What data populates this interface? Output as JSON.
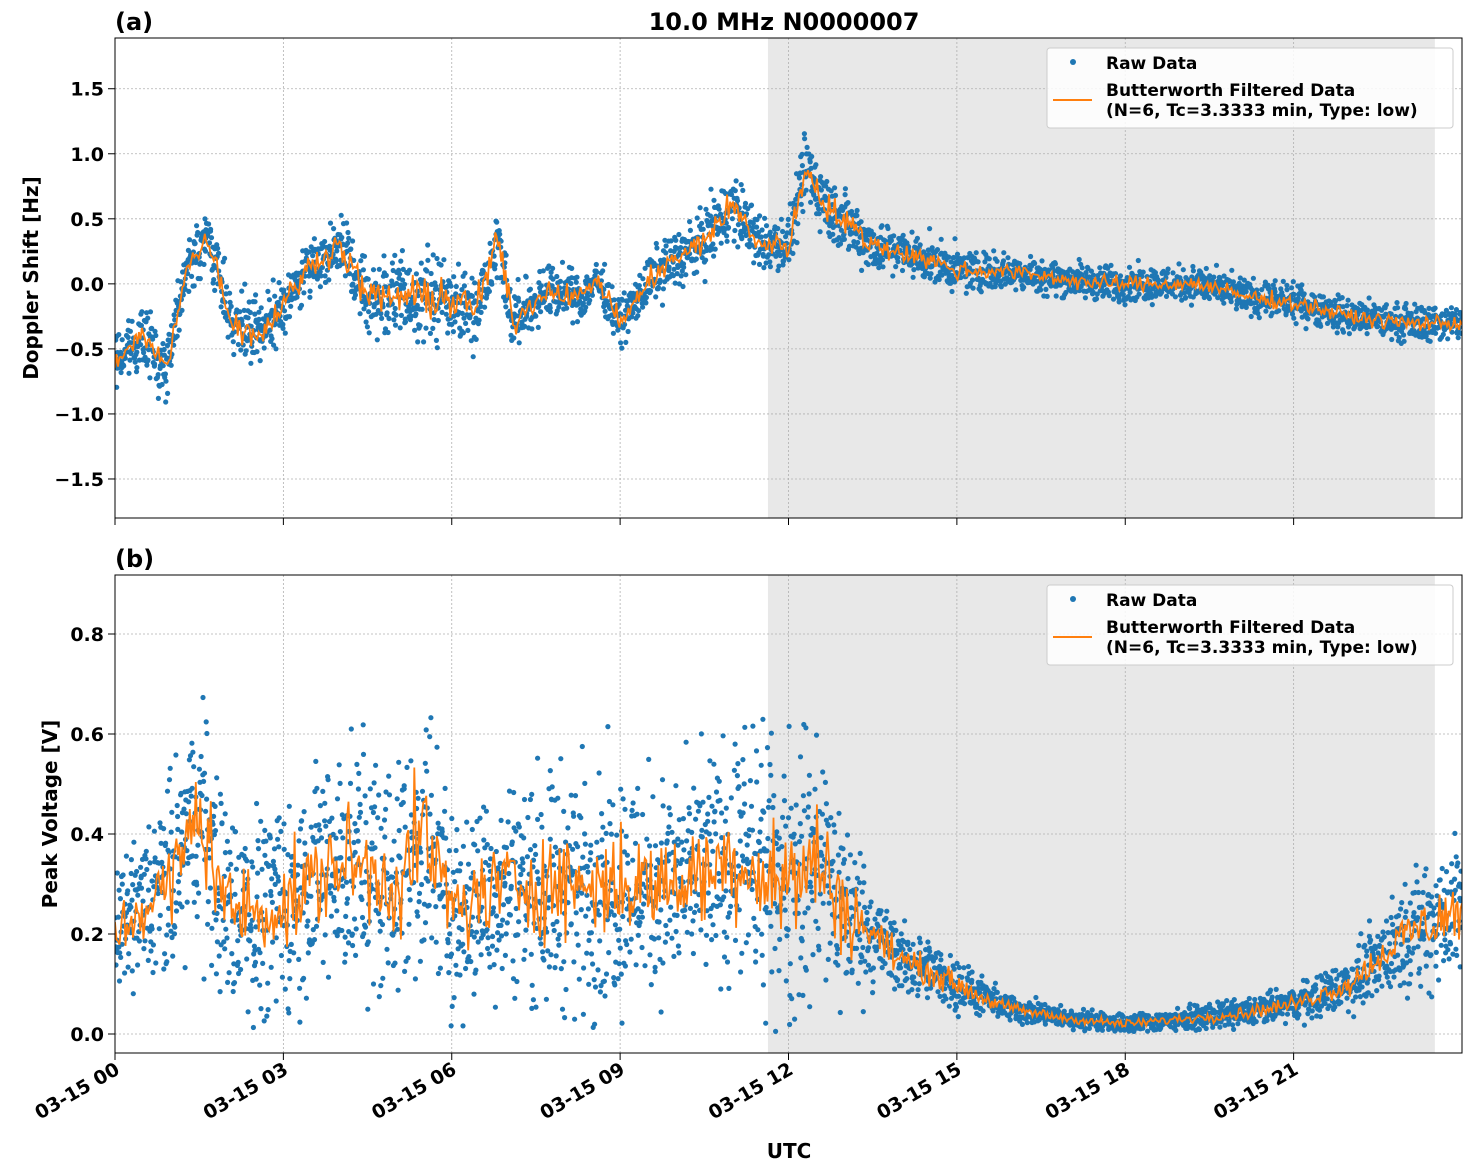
{
  "chart_data": [
    {
      "type": "scatter+line",
      "panel_label": "(a)",
      "title": "10.0 MHz N0000007",
      "ylabel": "Doppler Shift [Hz]",
      "xlabel": "",
      "xlim": [
        "03-15 00:00",
        "03-16 00:00"
      ],
      "ylim": [
        -1.8,
        1.89
      ],
      "xticks": [
        "03-15 00",
        "03-15 03",
        "03-15 06",
        "03-15 09",
        "03-15 12",
        "03-15 15",
        "03-15 18",
        "03-15 21"
      ],
      "yticks": [
        "−1.5",
        "−1.0",
        "−0.5",
        "0.0",
        "0.5",
        "1.0",
        "1.5"
      ],
      "ytick_values": [
        -1.5,
        -1.0,
        -0.5,
        0.0,
        0.5,
        1.0,
        1.5
      ],
      "grid": true,
      "legend_placement": "top-right",
      "shaded_span": [
        "03-15 11:38",
        "03-15 23:31"
      ],
      "legend": [
        "Raw Data",
        "Butterworth Filtered Data",
        "(N=6, Tc=3.3333 min, Type: low)"
      ],
      "series": [
        {
          "name": "Butterworth Filtered Data (N=6, Tc=3.3333 min, Type: low)",
          "color": "#ff7f0e",
          "x": [
            "03-15 00:00",
            "03-15 00:30",
            "03-15 00:55",
            "03-15 01:15",
            "03-15 01:40",
            "03-15 02:05",
            "03-15 02:35",
            "03-15 03:00",
            "03-15 03:30",
            "03-15 04:00",
            "03-15 04:30",
            "03-15 05:05",
            "03-15 05:50",
            "03-15 06:25",
            "03-15 06:50",
            "03-15 07:05",
            "03-15 07:40",
            "03-15 08:20",
            "03-15 08:35",
            "03-15 09:00",
            "03-15 09:40",
            "03-15 10:25",
            "03-15 11:00",
            "03-15 11:30",
            "03-15 12:00",
            "03-15 12:20",
            "03-15 12:40",
            "03-15 13:30",
            "03-15 14:25",
            "03-15 15:00",
            "03-15 15:50",
            "03-15 17:35",
            "03-15 19:20",
            "03-15 20:10",
            "03-15 21:05",
            "03-15 22:00",
            "03-15 22:55",
            "03-16 00:00"
          ],
          "y": [
            -0.6,
            -0.4,
            -0.65,
            0.1,
            0.35,
            -0.3,
            -0.4,
            -0.15,
            0.15,
            0.3,
            -0.1,
            -0.1,
            -0.1,
            -0.2,
            0.35,
            -0.3,
            -0.05,
            -0.1,
            0.05,
            -0.3,
            0.1,
            0.3,
            0.6,
            0.3,
            0.3,
            0.9,
            0.6,
            0.3,
            0.2,
            0.1,
            0.1,
            0.0,
            0.0,
            -0.1,
            -0.15,
            -0.25,
            -0.3,
            -0.3
          ]
        },
        {
          "name": "Raw Data",
          "color": "#1f77b4",
          "spread_hz": [
            0.3,
            0.35,
            0.35,
            0.3,
            0.3,
            0.35,
            0.4,
            0.3,
            0.3,
            0.35,
            0.4,
            0.5,
            0.5,
            0.45,
            0.35,
            0.35,
            0.3,
            0.25,
            0.25,
            0.25,
            0.3,
            0.35,
            0.4,
            0.3,
            0.3,
            0.45,
            0.4,
            0.3,
            0.25,
            0.25,
            0.2,
            0.2,
            0.2,
            0.2,
            0.2,
            0.2,
            0.2,
            0.2
          ]
        }
      ]
    },
    {
      "type": "scatter+line",
      "panel_label": "(b)",
      "ylabel": "Peak Voltage [V]",
      "xlabel": "UTC",
      "xlim": [
        "03-15 00:00",
        "03-16 00:00"
      ],
      "ylim": [
        -0.038,
        0.918
      ],
      "xticks": [
        "03-15 00",
        "03-15 03",
        "03-15 06",
        "03-15 09",
        "03-15 12",
        "03-15 15",
        "03-15 18",
        "03-15 21"
      ],
      "yticks": [
        "0.0",
        "0.2",
        "0.4",
        "0.6",
        "0.8"
      ],
      "ytick_values": [
        0.0,
        0.2,
        0.4,
        0.6,
        0.8
      ],
      "grid": true,
      "legend_placement": "top-right",
      "shaded_span": [
        "03-15 11:38",
        "03-15 23:31"
      ],
      "legend": [
        "Raw Data",
        "Butterworth Filtered Data",
        "(N=6, Tc=3.3333 min, Type: low)"
      ],
      "series": [
        {
          "name": "Butterworth Filtered Data (N=6, Tc=3.3333 min, Type: low)",
          "color": "#ff7f0e",
          "x": [
            "03-15 00:00",
            "03-15 01:00",
            "03-15 01:30",
            "03-15 02:00",
            "03-15 03:00",
            "03-15 04:00",
            "03-15 05:00",
            "03-15 05:30",
            "03-15 06:00",
            "03-15 07:00",
            "03-15 08:00",
            "03-15 09:00",
            "03-15 10:00",
            "03-15 11:00",
            "03-15 12:00",
            "03-15 12:30",
            "03-15 13:00",
            "03-15 13:30",
            "03-15 14:00",
            "03-15 15:00",
            "03-15 15:30",
            "03-15 16:00",
            "03-15 17:00",
            "03-15 18:00",
            "03-15 19:00",
            "03-15 20:00",
            "03-15 21:00",
            "03-15 22:00",
            "03-15 23:00",
            "03-16 00:00"
          ],
          "y": [
            0.2,
            0.3,
            0.45,
            0.25,
            0.25,
            0.35,
            0.3,
            0.4,
            0.25,
            0.3,
            0.3,
            0.3,
            0.3,
            0.35,
            0.3,
            0.35,
            0.25,
            0.2,
            0.15,
            0.1,
            0.07,
            0.05,
            0.03,
            0.02,
            0.03,
            0.04,
            0.06,
            0.1,
            0.2,
            0.25
          ]
        },
        {
          "name": "Raw Data",
          "color": "#1f77b4",
          "spread_v": [
            0.15,
            0.3,
            0.35,
            0.3,
            0.3,
            0.35,
            0.35,
            0.4,
            0.3,
            0.3,
            0.35,
            0.35,
            0.3,
            0.35,
            0.4,
            0.4,
            0.3,
            0.15,
            0.1,
            0.08,
            0.05,
            0.04,
            0.03,
            0.03,
            0.03,
            0.04,
            0.05,
            0.08,
            0.15,
            0.25
          ]
        }
      ]
    }
  ]
}
